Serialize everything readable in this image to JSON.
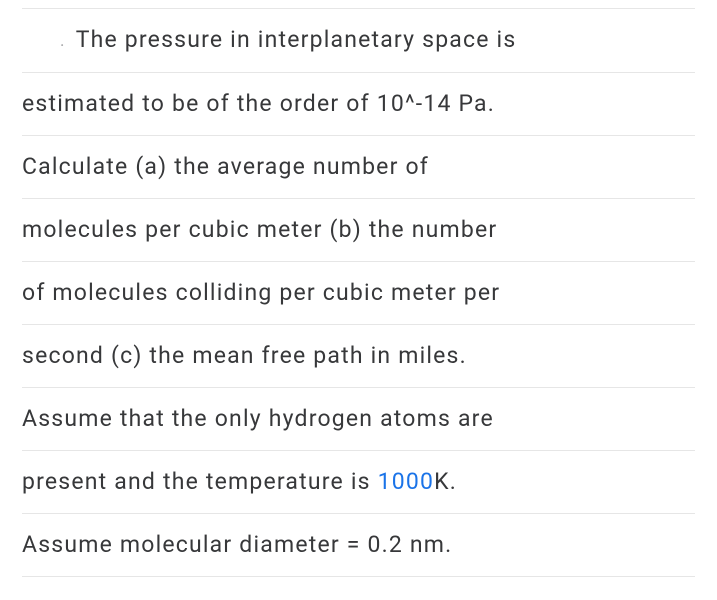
{
  "text_color": "#37383a",
  "highlight_color": "#1a73e8",
  "rule_color": "#e6e6e6",
  "background_color": "#ffffff",
  "font_size": 23,
  "line_height": 62,
  "letter_spacing": 1.2,
  "lines": {
    "l1": "The pressure in interplanetary space is",
    "l2": "estimated to be of the order of 10^-14 Pa.",
    "l3": "Calculate (a) the average number of",
    "l4": "molecules per cubic meter (b) the number",
    "l5": "of molecules colliding per cubic meter per",
    "l6": "second (c) the mean free path in miles.",
    "l7": "Assume that the only hydrogen atoms are",
    "l8a": "present and the temperature is ",
    "l8_highlight": "1000",
    "l8b": "K.",
    "l9": "Assume molecular diameter = 0.2 nm."
  }
}
